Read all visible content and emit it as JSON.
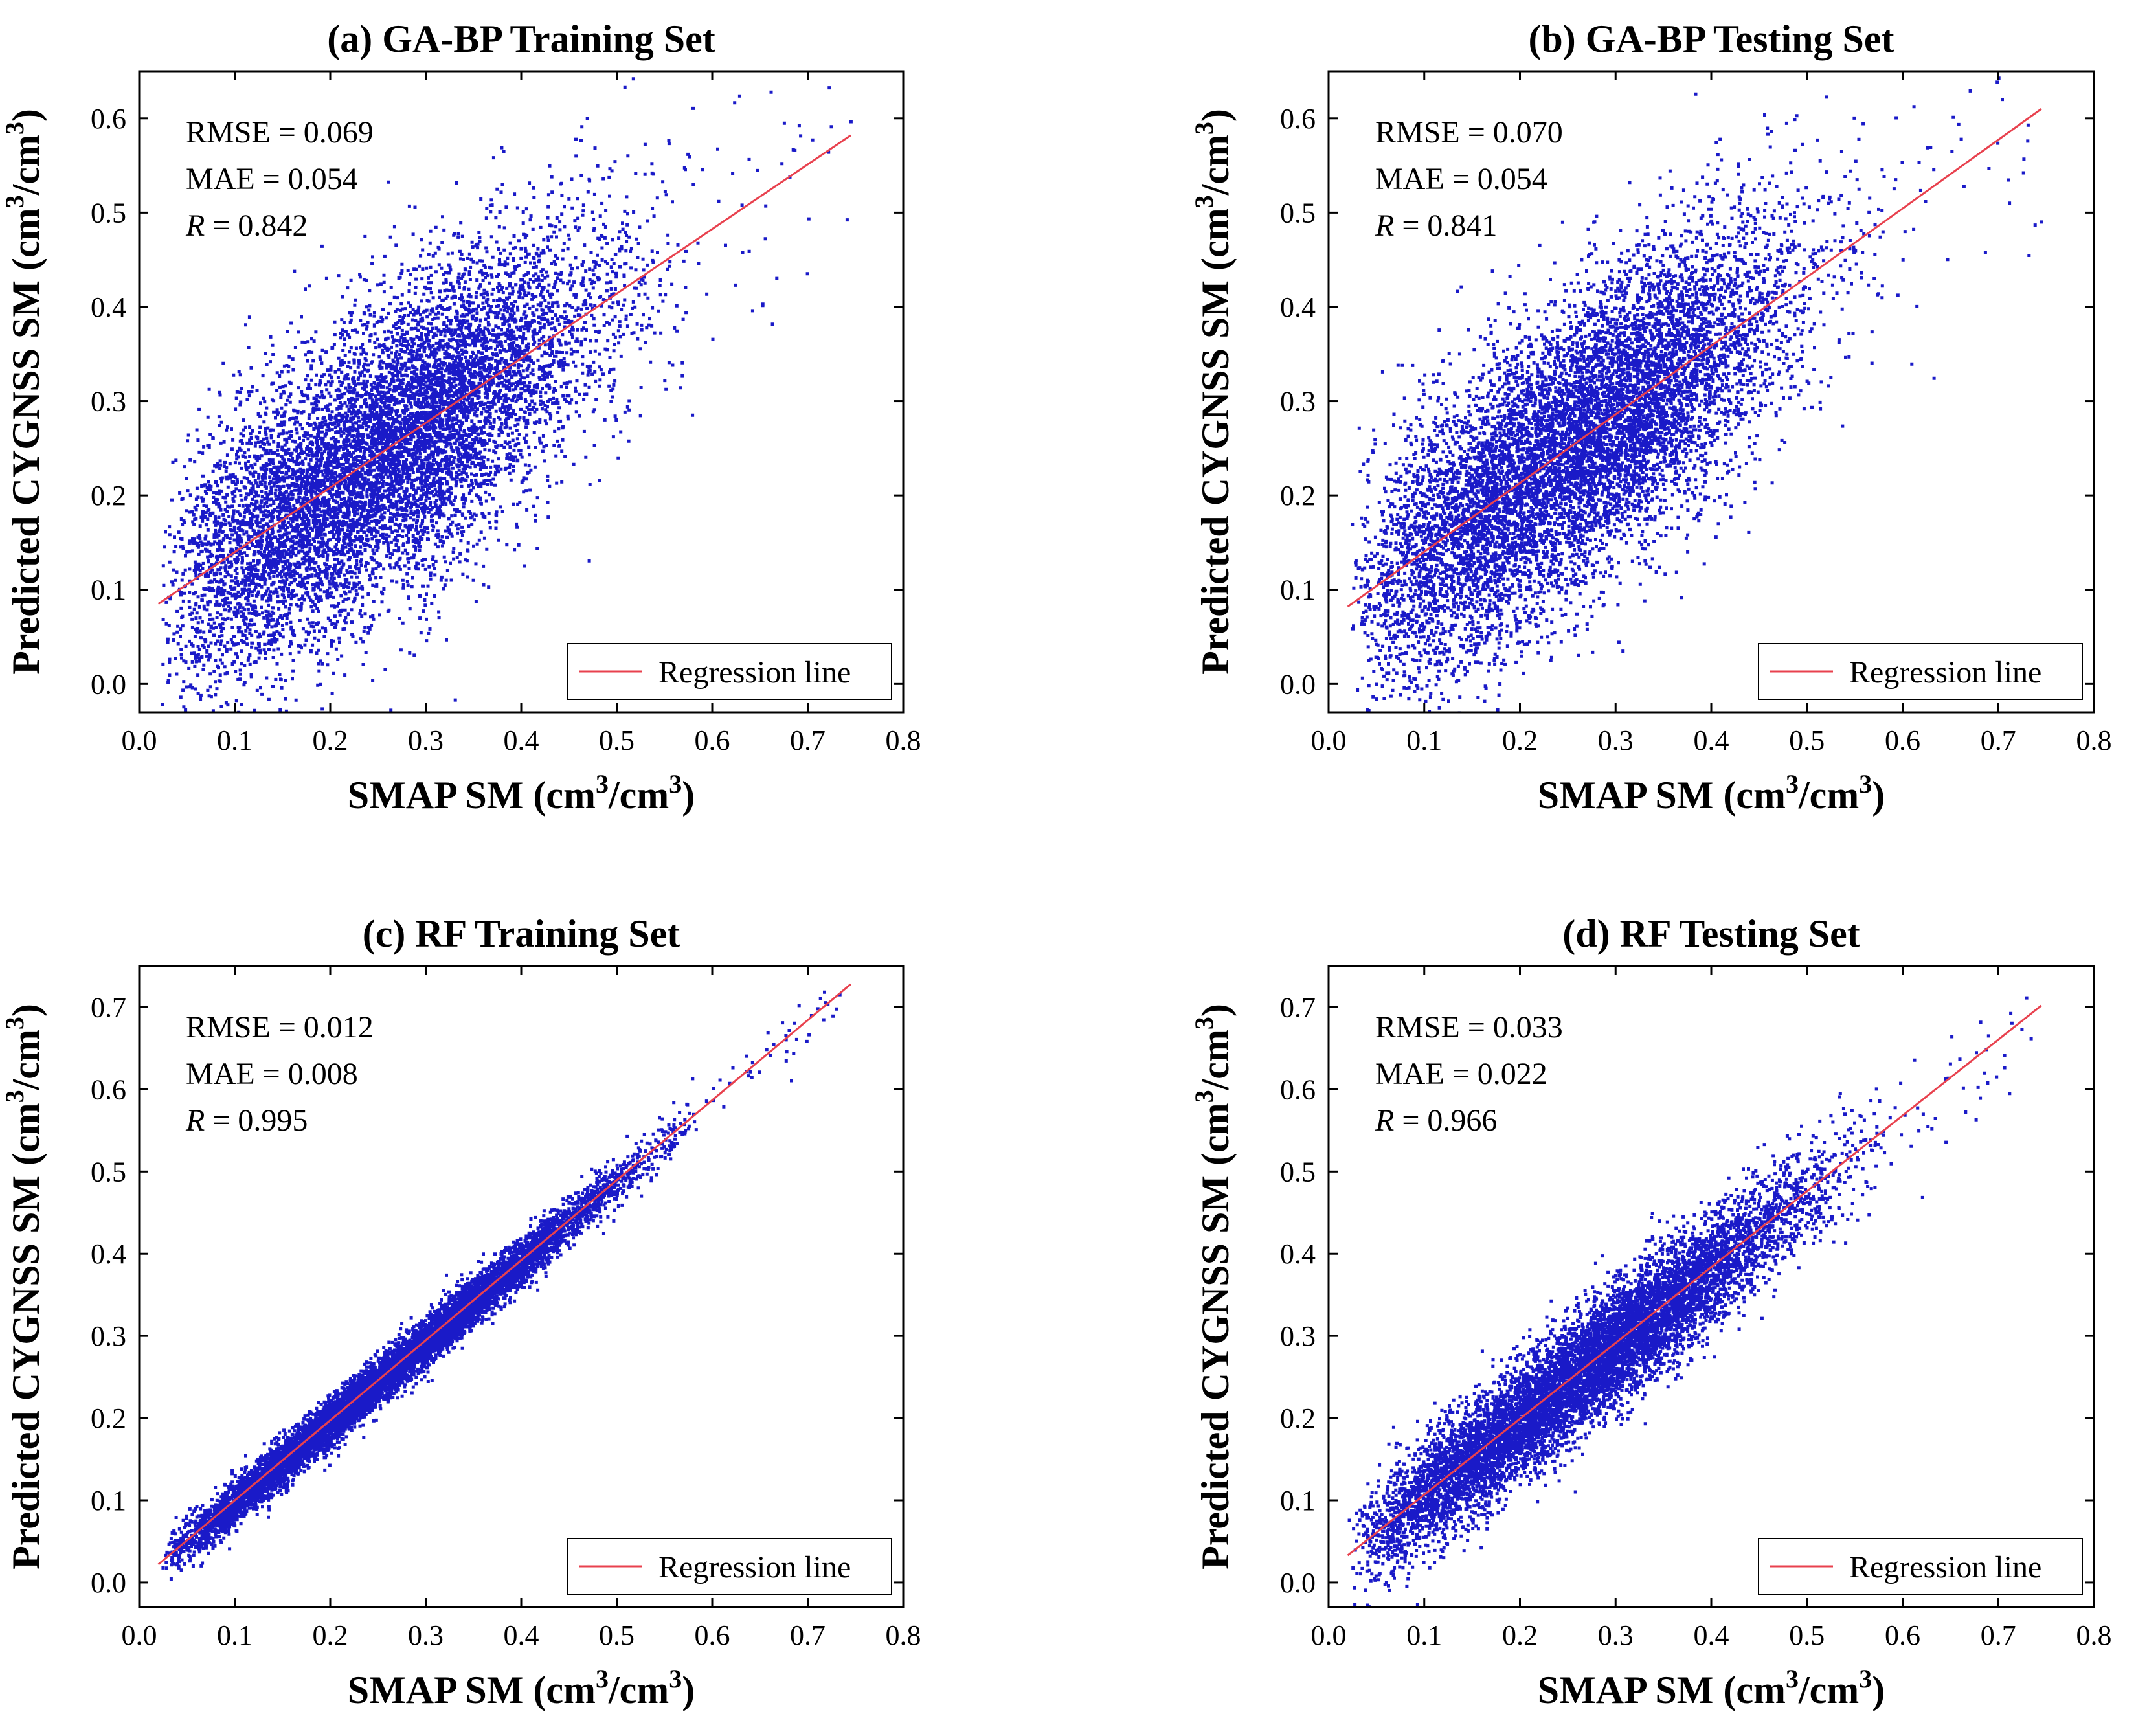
{
  "chart_data": [
    {
      "type": "scatter",
      "title": "(a) GA-BP Training Set",
      "xlabel_main": "SMAP SM (cm",
      "xlabel_mid": "/cm",
      "xlabel_end": ")",
      "ylabel_main": "Predicted CYGNSS SM (cm",
      "ylabel_mid": "/cm",
      "ylabel_end": ")",
      "sup": "3",
      "xlim": [
        0.0,
        0.8
      ],
      "ylim": [
        -0.03,
        0.65
      ],
      "xticks": [
        "0.0",
        "0.1",
        "0.2",
        "0.3",
        "0.4",
        "0.5",
        "0.6",
        "0.7",
        "0.8"
      ],
      "yticks": [
        "0.0",
        "0.1",
        "0.2",
        "0.3",
        "0.4",
        "0.5",
        "0.6"
      ],
      "stats": {
        "rmse": "RMSE = 0.069",
        "mae": "MAE = 0.054",
        "r_symbol": "R",
        "r_value": " = 0.842"
      },
      "legend_label": "Regression line",
      "regression": {
        "x": [
          0.02,
          0.745
        ],
        "y": [
          0.085,
          0.582
        ]
      },
      "series_color": "#1a1ac8",
      "line_color": "#e8414e",
      "cloud": {
        "slope": 0.69,
        "intercept": 0.072,
        "spread_x": 0.11,
        "spread_y": 0.075,
        "density": 9000
      }
    },
    {
      "type": "scatter",
      "title": "(b) GA-BP Testing Set",
      "xlabel_main": "SMAP SM (cm",
      "xlabel_mid": "/cm",
      "xlabel_end": ")",
      "ylabel_main": "Predicted CYGNSS SM (cm",
      "ylabel_mid": "/cm",
      "ylabel_end": ")",
      "sup": "3",
      "xlim": [
        0.0,
        0.8
      ],
      "ylim": [
        -0.03,
        0.65
      ],
      "xticks": [
        "0.0",
        "0.1",
        "0.2",
        "0.3",
        "0.4",
        "0.5",
        "0.6",
        "0.7",
        "0.8"
      ],
      "yticks": [
        "0.0",
        "0.1",
        "0.2",
        "0.3",
        "0.4",
        "0.5",
        "0.6"
      ],
      "stats": {
        "rmse": "RMSE = 0.070",
        "mae": "MAE = 0.054",
        "r_symbol": "R",
        "r_value": " = 0.841"
      },
      "legend_label": "Regression line",
      "regression": {
        "x": [
          0.02,
          0.745
        ],
        "y": [
          0.082,
          0.61
        ]
      },
      "series_color": "#1a1ac8",
      "line_color": "#e8414e",
      "cloud": {
        "slope": 0.73,
        "intercept": 0.068,
        "spread_x": 0.11,
        "spread_y": 0.075,
        "density": 9000
      }
    },
    {
      "type": "scatter",
      "title": "(c) RF Training Set",
      "xlabel_main": "SMAP SM (cm",
      "xlabel_mid": "/cm",
      "xlabel_end": ")",
      "ylabel_main": "Predicted CYGNSS SM (cm",
      "ylabel_mid": "/cm",
      "ylabel_end": ")",
      "sup": "3",
      "xlim": [
        0.0,
        0.8
      ],
      "ylim": [
        -0.03,
        0.75
      ],
      "xticks": [
        "0.0",
        "0.1",
        "0.2",
        "0.3",
        "0.4",
        "0.5",
        "0.6",
        "0.7",
        "0.8"
      ],
      "yticks": [
        "0.0",
        "0.1",
        "0.2",
        "0.3",
        "0.4",
        "0.5",
        "0.6",
        "0.7"
      ],
      "stats": {
        "rmse": "RMSE = 0.012",
        "mae": "MAE = 0.008",
        "r_symbol": "R",
        "r_value": " = 0.995"
      },
      "legend_label": "Regression line",
      "regression": {
        "x": [
          0.02,
          0.745
        ],
        "y": [
          0.022,
          0.728
        ]
      },
      "series_color": "#1a1ac8",
      "line_color": "#e8414e",
      "cloud": {
        "slope": 0.975,
        "intercept": 0.003,
        "spread_x": 0.12,
        "spread_y": 0.014,
        "density": 9000
      }
    },
    {
      "type": "scatter",
      "title": "(d) RF Testing Set",
      "xlabel_main": "SMAP SM (cm",
      "xlabel_mid": "/cm",
      "xlabel_end": ")",
      "ylabel_main": "Predicted CYGNSS SM (cm",
      "ylabel_mid": "/cm",
      "ylabel_end": ")",
      "sup": "3",
      "xlim": [
        0.0,
        0.8
      ],
      "ylim": [
        -0.03,
        0.75
      ],
      "xticks": [
        "0.0",
        "0.1",
        "0.2",
        "0.3",
        "0.4",
        "0.5",
        "0.6",
        "0.7",
        "0.8"
      ],
      "yticks": [
        "0.0",
        "0.1",
        "0.2",
        "0.3",
        "0.4",
        "0.5",
        "0.6",
        "0.7"
      ],
      "stats": {
        "rmse": "RMSE = 0.033",
        "mae": "MAE = 0.022",
        "r_symbol": "R",
        "r_value": " = 0.966"
      },
      "legend_label": "Regression line",
      "regression": {
        "x": [
          0.02,
          0.745
        ],
        "y": [
          0.033,
          0.702
        ]
      },
      "series_color": "#1a1ac8",
      "line_color": "#e8414e",
      "cloud": {
        "slope": 0.92,
        "intercept": 0.015,
        "spread_x": 0.12,
        "spread_y": 0.035,
        "density": 9000
      }
    }
  ]
}
